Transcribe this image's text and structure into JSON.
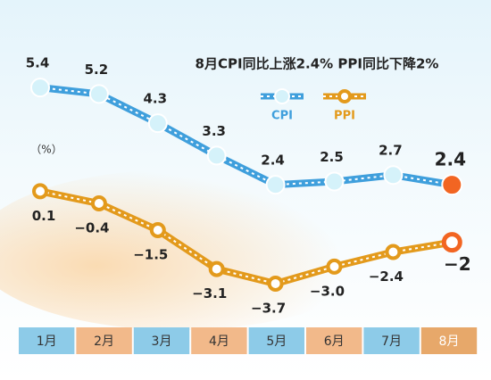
{
  "chart_data": {
    "type": "line",
    "title": "8月CPI同比上涨2.4%   PPI同比下降2%",
    "unit_label": "（%）",
    "categories": [
      "1月",
      "2月",
      "3月",
      "4月",
      "5月",
      "6月",
      "7月",
      "8月"
    ],
    "series": [
      {
        "name": "CPI",
        "color": "#3f9fdc",
        "values": [
          5.4,
          5.2,
          4.3,
          3.3,
          2.4,
          2.5,
          2.7,
          2.4
        ]
      },
      {
        "name": "PPI",
        "color": "#e39a1c",
        "axis": "y2",
        "values": [
          0.1,
          -0.4,
          -1.5,
          -3.1,
          -3.7,
          -3.0,
          -2.4,
          -2
        ],
        "value_labels": [
          "0.1",
          "−0.4",
          "−1.5",
          "−3.1",
          "−3.7",
          "−3.0",
          "−2.4",
          "−2"
        ]
      }
    ],
    "ylim": [
      -2,
      7
    ],
    "y2lim": [
      -5.5,
      6.5
    ]
  }
}
